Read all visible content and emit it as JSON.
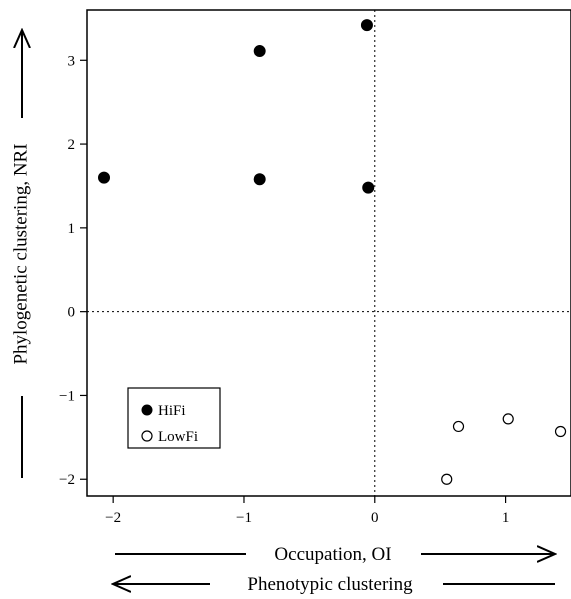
{
  "chart_data": {
    "type": "scatter",
    "xlabel": "Occupation, OI",
    "xlabel_secondary": "Phenotypic clustering",
    "ylabel": "Phylogenetic clustering, NRI",
    "xlim": [
      -2.2,
      1.5
    ],
    "ylim": [
      -2.2,
      3.6
    ],
    "x_ticks": [
      -2,
      -1,
      0,
      1
    ],
    "y_ticks": [
      -2,
      -1,
      0,
      1,
      2,
      3
    ],
    "x_tick_labels": [
      "−2",
      "−1",
      "0",
      "1"
    ],
    "y_tick_labels": [
      "−2",
      "−1",
      "0",
      "1",
      "2",
      "3"
    ],
    "grid": false,
    "reference_lines": {
      "x": 0,
      "y": 0,
      "style": "dotted"
    },
    "legend_position": "bottom-left",
    "series": [
      {
        "name": "HiFi",
        "marker": "filled-circle",
        "points": [
          {
            "x": -2.07,
            "y": 1.6
          },
          {
            "x": -0.88,
            "y": 3.11
          },
          {
            "x": -0.88,
            "y": 1.58
          },
          {
            "x": -0.06,
            "y": 3.42
          },
          {
            "x": -0.05,
            "y": 1.48
          }
        ]
      },
      {
        "name": "LowFi",
        "marker": "open-circle",
        "points": [
          {
            "x": 0.55,
            "y": -2.0
          },
          {
            "x": 0.64,
            "y": -1.37
          },
          {
            "x": 1.02,
            "y": -1.28
          },
          {
            "x": 1.42,
            "y": -1.43
          }
        ]
      }
    ]
  }
}
